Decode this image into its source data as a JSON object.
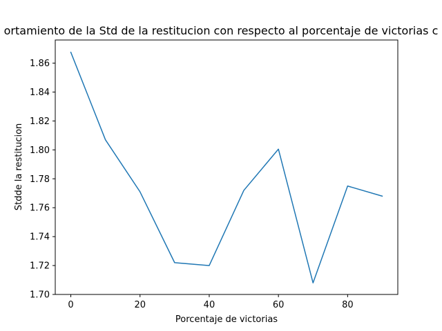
{
  "chart_data": {
    "type": "line",
    "title": "ortamiento de la Std de la restitucion con respecto al porcentaje de victorias c",
    "xlabel": "Porcentaje de victorias",
    "ylabel": "Stdde la restitucion",
    "x": [
      0,
      10,
      20,
      30,
      40,
      50,
      60,
      70,
      80,
      90
    ],
    "series": [
      {
        "values": [
          1.8675,
          1.807,
          1.771,
          1.722,
          1.72,
          1.772,
          1.8005,
          1.708,
          1.775,
          1.768
        ],
        "color": "#1f77b4"
      }
    ],
    "xlim": [
      -4.5,
      94.5
    ],
    "ylim": [
      1.7,
      1.876
    ],
    "xticks": [
      0,
      20,
      40,
      60,
      80
    ],
    "xtick_labels": [
      "0",
      "20",
      "40",
      "60",
      "80"
    ],
    "yticks": [
      1.7,
      1.72,
      1.74,
      1.76,
      1.78,
      1.8,
      1.82,
      1.84,
      1.86
    ],
    "ytick_labels": [
      "1.70",
      "1.72",
      "1.74",
      "1.76",
      "1.78",
      "1.80",
      "1.82",
      "1.84",
      "1.86"
    ],
    "grid": false,
    "legend": false
  }
}
